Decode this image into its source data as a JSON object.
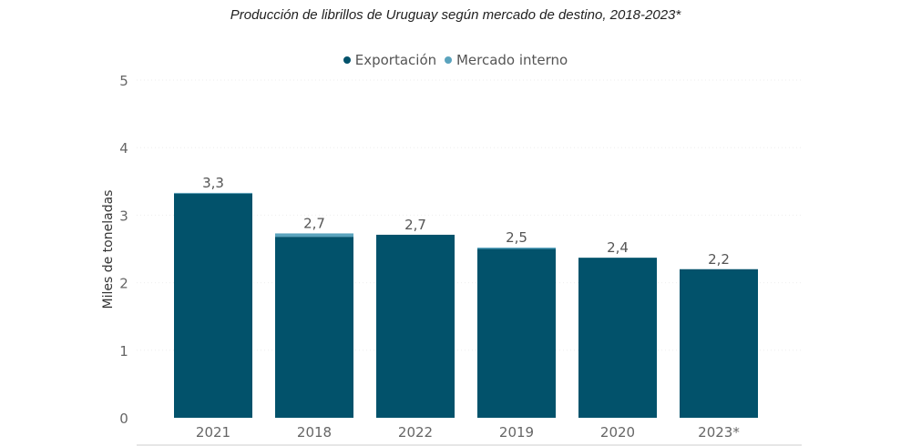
{
  "chart_data": {
    "type": "bar",
    "stacked": true,
    "title": "Producción de librillos de Uruguay según mercado de destino, 2018-2023*",
    "xlabel": "",
    "ylabel": "Miles de toneladas",
    "ylim": [
      0,
      5
    ],
    "yticks": [
      "0",
      "1",
      "2",
      "3",
      "4",
      "5"
    ],
    "categories": [
      "2021",
      "2018",
      "2022",
      "2019",
      "2020",
      "2023*"
    ],
    "series": [
      {
        "name": "Exportación",
        "color": "#02526b",
        "values": [
          3.32,
          2.68,
          2.71,
          2.5,
          2.37,
          2.2
        ]
      },
      {
        "name": "Mercado interno",
        "color": "#5aa3bd",
        "values": [
          0.01,
          0.05,
          0.0,
          0.02,
          0.0,
          0.0
        ]
      }
    ],
    "data_labels": [
      "3,3",
      "2,7",
      "2,7",
      "2,5",
      "2,4",
      "2,2"
    ],
    "legend_position": "top-center",
    "grid": true
  }
}
